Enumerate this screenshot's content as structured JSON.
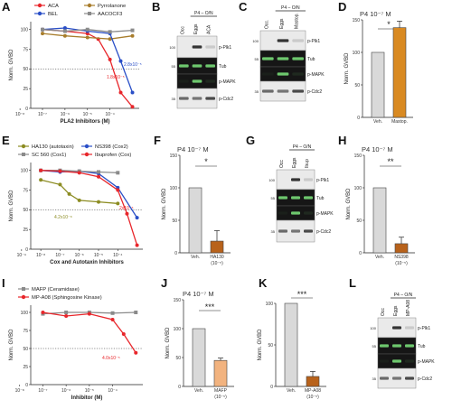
{
  "panels": {
    "A": {
      "label": "A",
      "legend": [
        "ACA",
        "Pyrrolanone",
        "BEL",
        "AACOCF3"
      ],
      "colors": [
        "#e8262b",
        "#a87d2c",
        "#2a4fc7",
        "#8a8a8a"
      ],
      "ylabel": "Norm. GVBD",
      "xlabel": "PLA2 Inhibitors (M)",
      "yticks": [
        "0",
        "25",
        "50",
        "75",
        "100"
      ],
      "xticks": [
        "10⁻⁸",
        "10⁻⁷",
        "10⁻⁶",
        "10⁻⁵",
        "10⁻⁴"
      ],
      "ic50_red": "1.8x10⁻⁵",
      "ic50_blue": "2.8x10⁻⁵"
    },
    "B": {
      "label": "B",
      "header": "P4 – O/N",
      "lanes": [
        "Occ",
        "Eggs",
        "ACA"
      ],
      "bands": [
        "p-Plk1",
        "Tub",
        "p-MAPK",
        "p-Cdc2"
      ],
      "mw": [
        "100",
        "55",
        "",
        "35"
      ]
    },
    "C": {
      "label": "C",
      "header": "P4 – O/N",
      "lanes": [
        "Occ.",
        "Eggs",
        "Mastop."
      ],
      "bands": [
        "p-Plk1",
        "Tub",
        "p-MAPK",
        "p-Cdc2"
      ],
      "mw": [
        "100",
        "55",
        "",
        "35"
      ]
    },
    "D": {
      "label": "D",
      "title": "P4 10⁻⁷ M",
      "ylabel": "Norm. GVBD",
      "yticks": [
        "0",
        "50",
        "100",
        "150"
      ],
      "bars": [
        "Veh.",
        "Mastop."
      ],
      "sig": "*"
    },
    "E": {
      "label": "E",
      "legend": [
        "HA130 (autotaxin)",
        "NS398 (Cox2)",
        "SC 560 (Cox1)",
        "Ibuprofen (Cox)"
      ],
      "colors": [
        "#8c8c22",
        "#2a4fc7",
        "#8a8a8a",
        "#e8262b"
      ],
      "ylabel": "Norm. GVBD",
      "xlabel": "Cox and Autotaxin Inhibitors",
      "yticks": [
        "0",
        "25",
        "50",
        "75",
        "100"
      ],
      "xticks": [
        "10⁻⁹",
        "10⁻⁸",
        "10⁻⁷",
        "10⁻⁶",
        "10⁻⁵",
        "10⁻⁴"
      ],
      "ic50_olive": "4.2x10⁻⁸",
      "ic50_red": "2x10⁻⁵"
    },
    "F": {
      "label": "F",
      "title": "P4 10⁻⁷ M",
      "ylabel": "Norm. GVBD",
      "yticks": [
        "0",
        "50",
        "100",
        "150"
      ],
      "bars": [
        "Veh.",
        "HA130"
      ],
      "sub": "(10⁻⁵)",
      "sig": "*"
    },
    "G": {
      "label": "G",
      "header": "P4 – O/N",
      "lanes": [
        "Occ",
        "Eggs",
        "Ibup"
      ],
      "bands": [
        "p-Plk1",
        "Tub",
        "p-MAPK",
        "p-Cdc2"
      ],
      "mw": [
        "100",
        "55",
        "",
        "35"
      ]
    },
    "H": {
      "label": "H",
      "title": "P4 10⁻⁷ M",
      "ylabel": "Norm. GVBD",
      "yticks": [
        "0",
        "50",
        "100",
        "150"
      ],
      "bars": [
        "Veh.",
        "NS398"
      ],
      "sub": "(10⁻⁵)",
      "sig": "**"
    },
    "I": {
      "label": "I",
      "legend": [
        "MAFP (Ceramidase)",
        "MP-A08 (Sphingosine Kinase)"
      ],
      "colors": [
        "#8a8a8a",
        "#e8262b"
      ],
      "ylabel": "Norm. GVBD",
      "xlabel": "Inhibitor (M)",
      "yticks": [
        "0",
        "25",
        "50",
        "75",
        "100"
      ],
      "xticks": [
        "10⁻⁸",
        "10⁻⁷",
        "10⁻⁶",
        "10⁻⁵",
        "10⁻⁴"
      ],
      "ic50_red": "4.0x10⁻⁵"
    },
    "J": {
      "label": "J",
      "title": "P4 10⁻⁷ M",
      "ylabel": "Norm. GVBD",
      "yticks": [
        "0",
        "50",
        "100",
        "150"
      ],
      "bars": [
        "Veh.",
        "MAFP"
      ],
      "sub": "(10⁻⁵)",
      "sig": "***"
    },
    "K": {
      "label": "K",
      "ylabel": "Norm. GVBD",
      "yticks": [
        "0",
        "50",
        "100"
      ],
      "bars": [
        "Veh.",
        "MP-A08"
      ],
      "sub": "(10⁻⁵)",
      "sig": "***"
    },
    "L": {
      "label": "L",
      "header": "P4 – O/N",
      "lanes": [
        "Occ",
        "Eggs",
        "MP-A08"
      ],
      "bands": [
        "p-Plk1",
        "Tub",
        "p-MAPK",
        "p-Cdc2"
      ],
      "mw": [
        "100",
        "55",
        "",
        "35"
      ]
    }
  },
  "chart_data": [
    {
      "panel": "A",
      "type": "line",
      "xscale": "log",
      "xlabel": "PLA2 Inhibitors (M)",
      "ylabel": "Norm. GVBD",
      "ylim": [
        0,
        110
      ],
      "series": [
        {
          "name": "ACA",
          "color": "#e8262b",
          "x": [
            1e-08,
            1e-07,
            1e-06,
            3e-06,
            1e-05,
            3e-05,
            0.0001
          ],
          "y": [
            100,
            98,
            95,
            88,
            62,
            20,
            2
          ]
        },
        {
          "name": "Pyrrolanone",
          "color": "#a87d2c",
          "x": [
            1e-08,
            1e-07,
            1e-06,
            1e-05,
            0.0001
          ],
          "y": [
            95,
            92,
            90,
            88,
            92
          ]
        },
        {
          "name": "BEL",
          "color": "#2a4fc7",
          "x": [
            1e-08,
            1e-07,
            1e-06,
            1e-05,
            3e-05,
            0.0001
          ],
          "y": [
            100,
            102,
            98,
            95,
            60,
            20
          ]
        },
        {
          "name": "AACOCF3",
          "color": "#8a8a8a",
          "x": [
            1e-08,
            1e-07,
            1e-06,
            1e-05,
            0.0001
          ],
          "y": [
            100,
            98,
            100,
            97,
            99
          ]
        }
      ]
    },
    {
      "panel": "D",
      "type": "bar",
      "ylabel": "Norm. GVBD",
      "ylim": [
        0,
        150
      ],
      "categories": [
        "Veh.",
        "Mastop."
      ],
      "values": [
        100,
        138
      ],
      "errors": [
        0,
        10
      ],
      "colors": [
        "#d9d9d9",
        "#d98a22"
      ]
    },
    {
      "panel": "E",
      "type": "line",
      "xscale": "log",
      "xlabel": "Cox and Autotaxin Inhibitors",
      "ylabel": "Norm. GVBD",
      "ylim": [
        0,
        110
      ],
      "series": [
        {
          "name": "HA130 (autotaxin)",
          "color": "#8c8c22",
          "x": [
            1e-09,
            1e-08,
            3e-08,
            1e-07,
            1e-06,
            1e-05
          ],
          "y": [
            88,
            82,
            70,
            62,
            60,
            58
          ]
        },
        {
          "name": "NS398 (Cox2)",
          "color": "#2a4fc7",
          "x": [
            1e-09,
            1e-08,
            1e-07,
            1e-06,
            1e-05,
            0.0001
          ],
          "y": [
            100,
            98,
            99,
            96,
            78,
            40
          ]
        },
        {
          "name": "SC 560 (Cox1)",
          "color": "#8a8a8a",
          "x": [
            1e-09,
            1e-08,
            1e-07,
            1e-06,
            1e-05
          ],
          "y": [
            100,
            100,
            99,
            98,
            97
          ]
        },
        {
          "name": "Ibuprofen (Cox)",
          "color": "#e8262b",
          "x": [
            1e-09,
            1e-08,
            1e-07,
            1e-06,
            1e-05,
            3e-05,
            0.0001
          ],
          "y": [
            100,
            99,
            97,
            92,
            75,
            45,
            5
          ]
        }
      ]
    },
    {
      "panel": "F",
      "type": "bar",
      "ylabel": "Norm. GVBD",
      "ylim": [
        0,
        150
      ],
      "categories": [
        "Veh.",
        "HA130"
      ],
      "values": [
        100,
        18
      ],
      "errors": [
        0,
        16
      ],
      "colors": [
        "#d9d9d9",
        "#b8621b"
      ]
    },
    {
      "panel": "H",
      "type": "bar",
      "ylabel": "Norm. GVBD",
      "ylim": [
        0,
        150
      ],
      "categories": [
        "Veh.",
        "NS398"
      ],
      "values": [
        100,
        14
      ],
      "errors": [
        0,
        10
      ],
      "colors": [
        "#d9d9d9",
        "#b8621b"
      ]
    },
    {
      "panel": "I",
      "type": "line",
      "xscale": "log",
      "xlabel": "Inhibitor (M)",
      "ylabel": "Norm. GVBD",
      "ylim": [
        0,
        110
      ],
      "series": [
        {
          "name": "MAFP (Ceramidase)",
          "color": "#8a8a8a",
          "x": [
            1e-08,
            1e-07,
            1e-06,
            1e-05,
            0.0001
          ],
          "y": [
            98,
            100,
            100,
            99,
            100
          ]
        },
        {
          "name": "MP-A08 (Sphingosine Kinase)",
          "color": "#e8262b",
          "x": [
            1e-08,
            1e-07,
            1e-06,
            1e-05,
            3e-05,
            0.0001
          ],
          "y": [
            100,
            95,
            98,
            90,
            70,
            44
          ]
        }
      ]
    },
    {
      "panel": "J",
      "type": "bar",
      "ylabel": "Norm. GVBD",
      "ylim": [
        0,
        150
      ],
      "categories": [
        "Veh.",
        "MAFP"
      ],
      "values": [
        100,
        45
      ],
      "errors": [
        0,
        4
      ],
      "colors": [
        "#d9d9d9",
        "#f2b37f"
      ]
    },
    {
      "panel": "K",
      "type": "bar",
      "ylabel": "Norm. GVBD",
      "ylim": [
        0,
        100
      ],
      "categories": [
        "Veh.",
        "MP-A08"
      ],
      "values": [
        100,
        12
      ],
      "errors": [
        0,
        6
      ],
      "colors": [
        "#d9d9d9",
        "#b8621b"
      ]
    }
  ]
}
